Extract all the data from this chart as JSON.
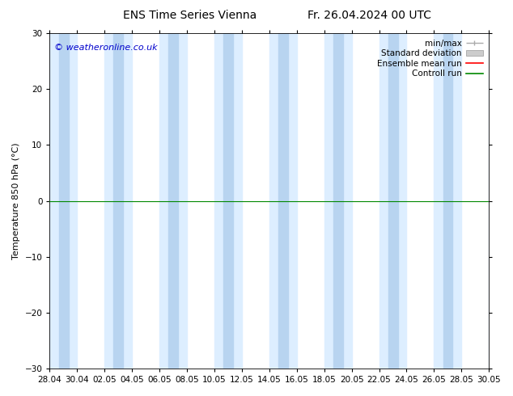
{
  "title_left": "ENS Time Series Vienna",
  "title_right": "Fr. 26.04.2024 00 UTC",
  "ylabel": "Temperature 850 hPa (°C)",
  "ylim": [
    -30,
    30
  ],
  "yticks": [
    -30,
    -20,
    -10,
    0,
    10,
    20,
    30
  ],
  "xtick_labels": [
    "28.04",
    "30.04",
    "02.05",
    "04.05",
    "06.05",
    "08.05",
    "10.05",
    "12.05",
    "14.05",
    "16.05",
    "18.05",
    "20.05",
    "22.05",
    "24.05",
    "26.05",
    "28.05",
    "30.05"
  ],
  "copyright_text": "© weatheronline.co.uk",
  "legend_items": [
    "min/max",
    "Standard deviation",
    "Ensemble mean run",
    "Controll run"
  ],
  "minmax_color": "#aaaaaa",
  "stddev_color": "#cccccc",
  "ensemble_color": "#ff0000",
  "control_color": "#008800",
  "bg_color": "#ffffff",
  "plot_bg_color": "#ffffff",
  "band_light": "#ddeeff",
  "band_dark": "#b8d4f0",
  "zero_line_color": "#008800",
  "title_fontsize": 10,
  "tick_fontsize": 7.5,
  "ylabel_fontsize": 8,
  "copyright_fontsize": 8,
  "legend_fontsize": 7.5
}
